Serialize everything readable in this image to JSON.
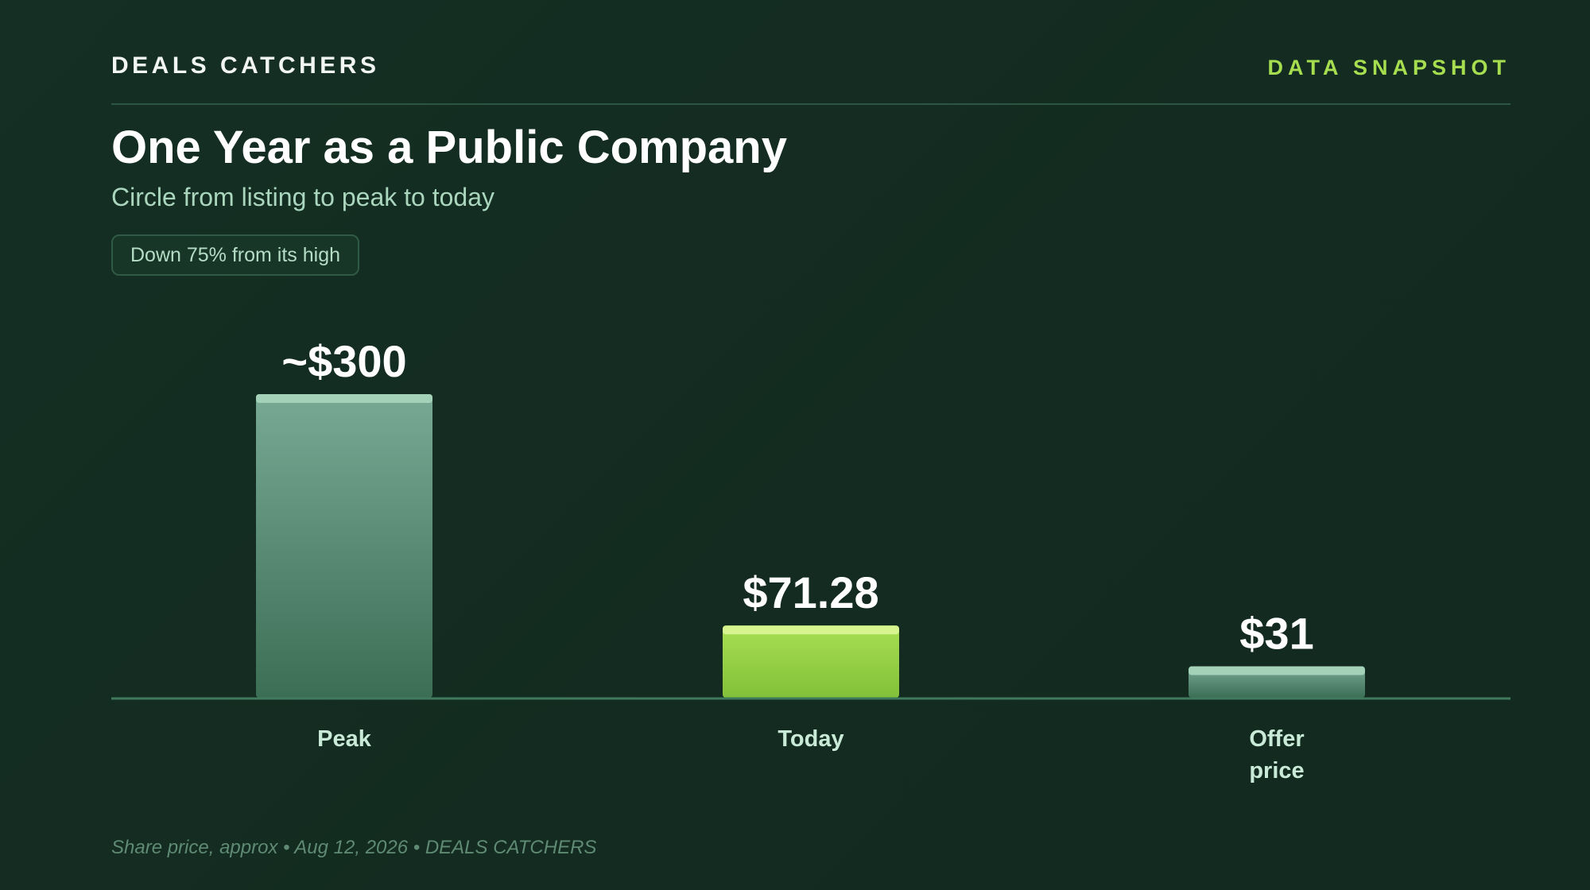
{
  "header": {
    "brand": "DEALS CATCHERS",
    "tag": "DATA SNAPSHOT",
    "title": "One Year as a Public Company",
    "subtitle": "Circle from listing to peak to today",
    "badge": "Down 75% from its high"
  },
  "footer": {
    "note": "Share price, approx • Aug 12, 2026 • DEALS CATCHERS"
  },
  "colors": {
    "background": "#132b20",
    "accent": "#a6de4f",
    "muted_bar": "#5f9a80",
    "highlight_bar": "#9bd84a",
    "axis": "#3f7a5c"
  },
  "chart_data": {
    "type": "bar",
    "categories": [
      "Peak",
      "Today",
      "Offer price"
    ],
    "category_lines": [
      [
        "Peak"
      ],
      [
        "Today"
      ],
      [
        "Offer",
        "price"
      ]
    ],
    "values": [
      300,
      71.28,
      31
    ],
    "value_labels": [
      "~$300",
      "$71.28",
      "$31"
    ],
    "highlight": [
      false,
      true,
      false
    ],
    "title": "",
    "xlabel": "",
    "ylabel": "",
    "ylim": [
      0,
      300
    ],
    "grid": false,
    "legend": "none"
  }
}
